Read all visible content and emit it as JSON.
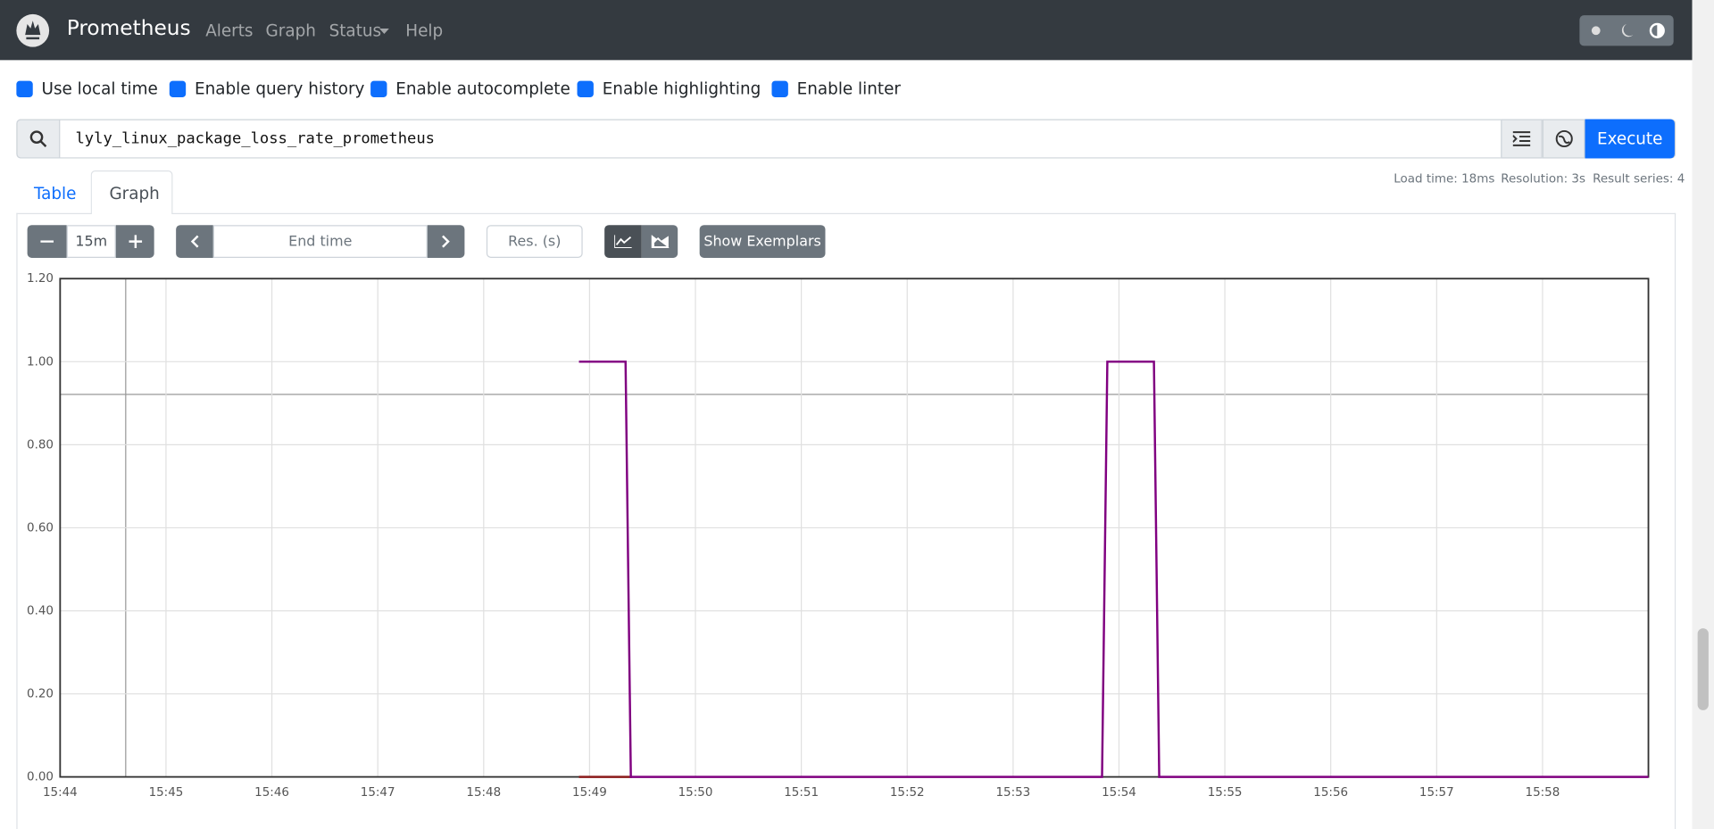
{
  "navbar": {
    "brand": "Prometheus",
    "links": [
      "Alerts",
      "Graph",
      "Status",
      "Help"
    ]
  },
  "options": [
    "Use local time",
    "Enable query history",
    "Enable autocomplete",
    "Enable highlighting",
    "Enable linter"
  ],
  "query": "lyly_linux_package_loss_rate_prometheus",
  "execute": "Execute",
  "tabs": [
    "Table",
    "Graph"
  ],
  "stats": [
    "Load time: 18ms",
    "Resolution: 3s",
    "Result series: 4"
  ],
  "controls": {
    "range": "15m",
    "end_time": "End time",
    "resolution": "Res. (s)",
    "exemplars": "Show Exemplars"
  },
  "chart_data": {
    "type": "line",
    "xlim": [
      944,
      959
    ],
    "xticks": [
      {
        "value": 944,
        "label": "15:44"
      },
      {
        "value": 945,
        "label": "15:45"
      },
      {
        "value": 946,
        "label": "15:46"
      },
      {
        "value": 947,
        "label": "15:47"
      },
      {
        "value": 948,
        "label": "15:48"
      },
      {
        "value": 949,
        "label": "15:49"
      },
      {
        "value": 950,
        "label": "15:50"
      },
      {
        "value": 951,
        "label": "15:51"
      },
      {
        "value": 952,
        "label": "15:52"
      },
      {
        "value": 953,
        "label": "15:53"
      },
      {
        "value": 954,
        "label": "15:54"
      },
      {
        "value": 955,
        "label": "15:55"
      },
      {
        "value": 956,
        "label": "15:56"
      },
      {
        "value": 957,
        "label": "15:57"
      },
      {
        "value": 958,
        "label": "15:58"
      }
    ],
    "ylim": [
      0,
      1.2
    ],
    "yticks": [
      {
        "value": 0,
        "label": "0.00"
      },
      {
        "value": 0.2,
        "label": "0.20"
      },
      {
        "value": 0.4,
        "label": "0.40"
      },
      {
        "value": 0.6,
        "label": "0.60"
      },
      {
        "value": 0.8,
        "label": "0.80"
      },
      {
        "value": 1,
        "label": "1.00"
      },
      {
        "value": 1.2,
        "label": "1.20"
      }
    ],
    "grid": true,
    "series": [
      {
        "color": "#8b1a1a",
        "x": [
          948.9,
          949.4
        ],
        "values": [
          0,
          0
        ]
      },
      {
        "color": "#800080",
        "x": [
          948.9,
          949.34,
          949.39,
          953.84,
          953.89,
          954.33,
          954.38,
          959
        ],
        "values": [
          1,
          1,
          0,
          0,
          1,
          1,
          0,
          0
        ]
      }
    ]
  }
}
